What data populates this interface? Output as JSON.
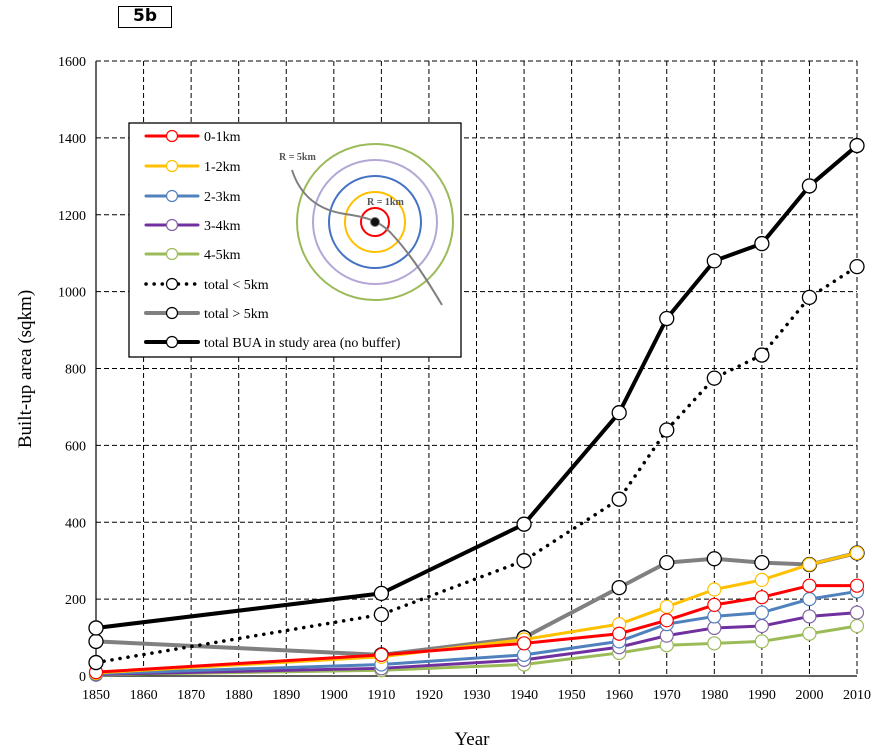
{
  "panel_label": "5b",
  "chart_data": {
    "type": "line",
    "title": "",
    "xlabel": "Year",
    "ylabel": "Built-up area (sqkm)",
    "xlim": [
      1850,
      2010
    ],
    "ylim": [
      0,
      1600
    ],
    "x_ticks": [
      1850,
      1860,
      1870,
      1880,
      1890,
      1900,
      1910,
      1920,
      1930,
      1940,
      1950,
      1960,
      1970,
      1980,
      1990,
      2000,
      2010
    ],
    "y_ticks": [
      0,
      200,
      400,
      600,
      800,
      1000,
      1200,
      1400,
      1600
    ],
    "grid": true,
    "legend_position": "top-left",
    "series": [
      {
        "name": "0-1km",
        "color": "#ff0000",
        "style": "solid",
        "marker_color": "#ff0000",
        "x": [
          1850,
          1910,
          1940,
          1960,
          1970,
          1980,
          1990,
          2000,
          2010
        ],
        "y": [
          10,
          55,
          85,
          110,
          145,
          185,
          205,
          235,
          235
        ]
      },
      {
        "name": "1-2km",
        "color": "#ffc000",
        "style": "solid",
        "marker_color": "#ffc000",
        "x": [
          1850,
          1910,
          1940,
          1960,
          1970,
          1980,
          1990,
          2000,
          2010
        ],
        "y": [
          8,
          50,
          95,
          135,
          180,
          225,
          250,
          290,
          320
        ]
      },
      {
        "name": "2-3km",
        "color": "#4f81bd",
        "style": "solid",
        "marker_color": "#4f81bd",
        "x": [
          1850,
          1910,
          1940,
          1960,
          1970,
          1980,
          1990,
          2000,
          2010
        ],
        "y": [
          6,
          30,
          55,
          90,
          135,
          155,
          165,
          200,
          220
        ]
      },
      {
        "name": "3-4km",
        "color": "#7030a0",
        "style": "solid",
        "marker_color": "#8064a2",
        "x": [
          1850,
          1910,
          1940,
          1960,
          1970,
          1980,
          1990,
          2000,
          2010
        ],
        "y": [
          4,
          20,
          42,
          75,
          105,
          125,
          130,
          155,
          165
        ]
      },
      {
        "name": "4-5km",
        "color": "#9bbb59",
        "style": "solid",
        "marker_color": "#9bbb59",
        "x": [
          1850,
          1910,
          1940,
          1960,
          1970,
          1980,
          1990,
          2000,
          2010
        ],
        "y": [
          3,
          15,
          30,
          60,
          80,
          85,
          90,
          110,
          130
        ]
      },
      {
        "name": "total < 5km",
        "color": "#000000",
        "style": "dotted",
        "marker_color": "#000000",
        "x": [
          1850,
          1910,
          1940,
          1960,
          1970,
          1980,
          1990,
          2000,
          2010
        ],
        "y": [
          35,
          160,
          300,
          460,
          640,
          775,
          835,
          985,
          1065
        ]
      },
      {
        "name": "total > 5km",
        "color": "#808080",
        "style": "solid-thick",
        "marker_color": "#000000",
        "x": [
          1850,
          1910,
          1940,
          1960,
          1970,
          1980,
          1990,
          2000,
          2010
        ],
        "y": [
          90,
          55,
          100,
          230,
          295,
          305,
          295,
          290,
          320
        ]
      },
      {
        "name": "total BUA in study area (no buffer)",
        "color": "#000000",
        "style": "solid-thick",
        "marker_color": "#000000",
        "x": [
          1850,
          1910,
          1940,
          1960,
          1970,
          1980,
          1990,
          2000,
          2010
        ],
        "y": [
          125,
          215,
          395,
          685,
          930,
          1080,
          1125,
          1275,
          1380
        ]
      }
    ],
    "inset": {
      "label_outer": "R = 5km",
      "label_inner": "R = 1km",
      "ring_colors": [
        "#ff0000",
        "#ffc000",
        "#4472c4",
        "#b4a7d6",
        "#9bbb59"
      ]
    }
  }
}
